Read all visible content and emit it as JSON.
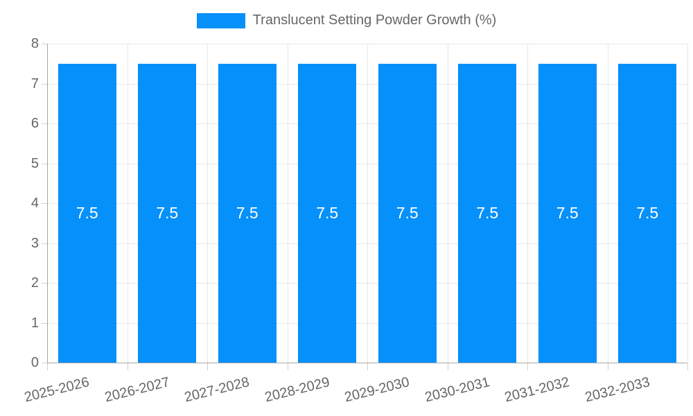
{
  "legend": {
    "label": "Translucent Setting Powder Growth (%)"
  },
  "chart_data": {
    "type": "bar",
    "title": "Translucent Setting Powder Growth (%)",
    "categories": [
      "2025-2026",
      "2026-2027",
      "2027-2028",
      "2028-2029",
      "2029-2030",
      "2030-2031",
      "2031-2032",
      "2032-2033"
    ],
    "values": [
      7.5,
      7.5,
      7.5,
      7.5,
      7.5,
      7.5,
      7.5,
      7.5
    ],
    "value_labels_shown": true,
    "xlabel": "",
    "ylabel": "",
    "ylim": [
      0,
      8
    ],
    "yticks": [
      0,
      1,
      2,
      3,
      4,
      5,
      6,
      7,
      8
    ],
    "grid": true,
    "legend_position": "top",
    "colors": {
      "bar": "#0590fa",
      "value_label": "#ffffff",
      "axis_text": "#666666",
      "grid_line": "#e6e6e6",
      "axis_line": "#a6a6a6",
      "tick_mark": "#cfcfcf",
      "background": "#ffffff"
    }
  }
}
